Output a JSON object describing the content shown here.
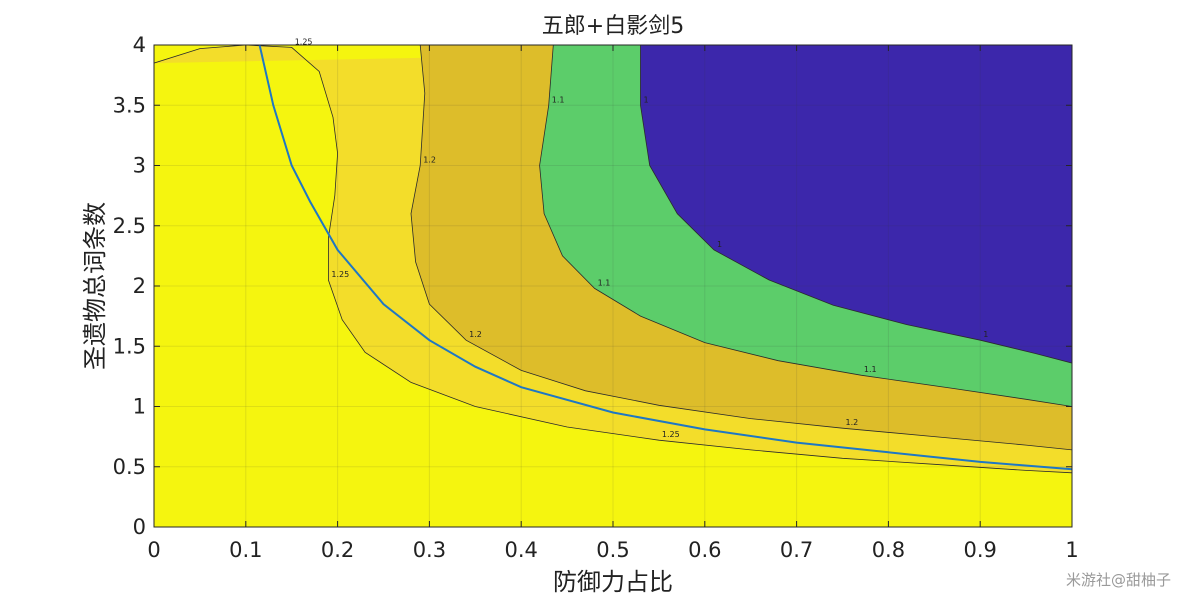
{
  "chart_data": {
    "type": "contour",
    "title": "五郎+白影剑5",
    "xlabel": "防御力占比",
    "ylabel": "圣遗物总词条数",
    "xlim": [
      0,
      1
    ],
    "ylim": [
      0,
      4
    ],
    "x_ticks": [
      "0",
      "0.1",
      "0.2",
      "0.3",
      "0.4",
      "0.5",
      "0.6",
      "0.7",
      "0.8",
      "0.9",
      "1"
    ],
    "y_ticks": [
      "0",
      "0.5",
      "1",
      "1.5",
      "2",
      "2.5",
      "3",
      "3.5",
      "4"
    ],
    "grid": true,
    "levels": [
      {
        "label": "1.25",
        "color": "#f5f50f"
      },
      {
        "label": "1.2",
        "color": "#f3dd2a"
      },
      {
        "label": "1.1",
        "color": "#ddbd2a"
      },
      {
        "label": "1",
        "color": "#5ccd6a"
      },
      {
        "label": "",
        "color": "#3c27ab"
      }
    ],
    "contours": [
      {
        "label": "1.25",
        "points": [
          [
            0,
            3.85
          ],
          [
            0.05,
            3.97
          ],
          [
            0.1,
            4.0
          ],
          [
            0.15,
            3.98
          ],
          [
            0.18,
            3.78
          ],
          [
            0.195,
            3.4
          ],
          [
            0.2,
            3.1
          ],
          [
            0.197,
            2.75
          ],
          [
            0.19,
            2.4
          ],
          [
            0.19,
            2.05
          ],
          [
            0.205,
            1.72
          ],
          [
            0.23,
            1.45
          ],
          [
            0.28,
            1.2
          ],
          [
            0.35,
            1.0
          ],
          [
            0.45,
            0.83
          ],
          [
            0.55,
            0.72
          ],
          [
            0.65,
            0.64
          ],
          [
            0.75,
            0.57
          ],
          [
            0.85,
            0.52
          ],
          [
            0.95,
            0.47
          ],
          [
            1.0,
            0.45
          ]
        ]
      },
      {
        "label": "1.2",
        "points": [
          [
            0.29,
            4.0
          ],
          [
            0.295,
            3.6
          ],
          [
            0.29,
            3.0
          ],
          [
            0.28,
            2.6
          ],
          [
            0.285,
            2.2
          ],
          [
            0.3,
            1.85
          ],
          [
            0.34,
            1.55
          ],
          [
            0.4,
            1.3
          ],
          [
            0.47,
            1.13
          ],
          [
            0.55,
            1.01
          ],
          [
            0.65,
            0.9
          ],
          [
            0.75,
            0.82
          ],
          [
            0.85,
            0.75
          ],
          [
            0.95,
            0.68
          ],
          [
            1.0,
            0.64
          ]
        ]
      },
      {
        "label": "1.1",
        "points": [
          [
            0.435,
            4.0
          ],
          [
            0.43,
            3.5
          ],
          [
            0.42,
            3.0
          ],
          [
            0.425,
            2.6
          ],
          [
            0.445,
            2.25
          ],
          [
            0.48,
            1.98
          ],
          [
            0.53,
            1.75
          ],
          [
            0.6,
            1.53
          ],
          [
            0.68,
            1.38
          ],
          [
            0.77,
            1.26
          ],
          [
            0.87,
            1.15
          ],
          [
            0.95,
            1.06
          ],
          [
            1.0,
            1.0
          ]
        ]
      },
      {
        "label": "1",
        "points": [
          [
            0.53,
            4.0
          ],
          [
            0.53,
            3.5
          ],
          [
            0.54,
            3.0
          ],
          [
            0.57,
            2.6
          ],
          [
            0.61,
            2.3
          ],
          [
            0.67,
            2.05
          ],
          [
            0.74,
            1.84
          ],
          [
            0.82,
            1.68
          ],
          [
            0.9,
            1.55
          ],
          [
            0.96,
            1.44
          ],
          [
            1.0,
            1.36
          ]
        ]
      }
    ],
    "curve": {
      "color": "#1f77c4",
      "points": [
        [
          0.115,
          4.0
        ],
        [
          0.13,
          3.5
        ],
        [
          0.15,
          3.0
        ],
        [
          0.17,
          2.7
        ],
        [
          0.2,
          2.3
        ],
        [
          0.25,
          1.85
        ],
        [
          0.3,
          1.55
        ],
        [
          0.35,
          1.33
        ],
        [
          0.4,
          1.16
        ],
        [
          0.5,
          0.95
        ],
        [
          0.6,
          0.81
        ],
        [
          0.7,
          0.7
        ],
        [
          0.8,
          0.62
        ],
        [
          0.9,
          0.54
        ],
        [
          1.0,
          0.48
        ]
      ]
    }
  },
  "watermark": "米游社@甜柚子"
}
